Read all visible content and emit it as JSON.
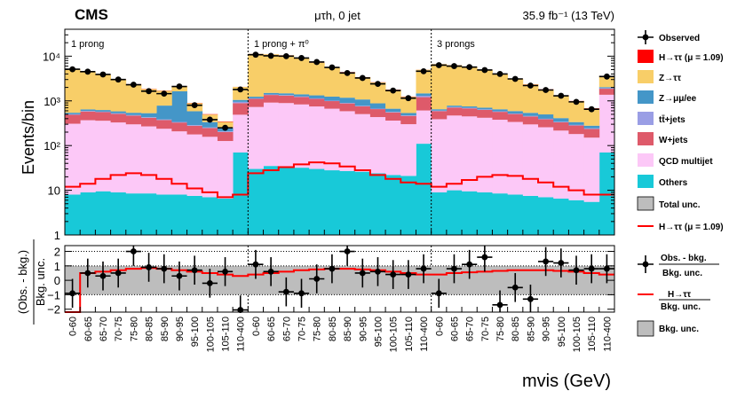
{
  "header": {
    "experiment": "CMS",
    "channel": "μτh, 0 jet",
    "lumi": "35.9 fb⁻¹ (13 TeV)"
  },
  "chart_data": {
    "type": "bar",
    "subtype": "stacked-histogram-with-ratio",
    "top_panel": {
      "ylabel": "Events/bin",
      "yscale": "log",
      "ylim": [
        1,
        40000
      ],
      "yticks": [
        "1",
        "10",
        "10²",
        "10³",
        "10⁴"
      ]
    },
    "bottom_panel": {
      "ylabel": "(Obs. - bkg.) / Bkg. unc.",
      "ylim": [
        -2.2,
        2.4
      ],
      "yticks": [
        "−2",
        "−1",
        "0",
        "1",
        "2"
      ]
    },
    "xlabel": "mvis (GeV)",
    "regions": [
      "1 prong",
      "1 prong + π⁰",
      "3 prongs"
    ],
    "bin_labels": [
      "0-60",
      "60-65",
      "65-70",
      "70-75",
      "75-80",
      "80-85",
      "85-90",
      "90-95",
      "95-100",
      "100-105",
      "105-110",
      "110-400"
    ],
    "series": [
      {
        "name": "Others",
        "color": "#18c9d8",
        "values": [
          8,
          9,
          9.5,
          9,
          8.5,
          8.5,
          8,
          8,
          7.5,
          7,
          6.5,
          70,
          30,
          35,
          33,
          32,
          30,
          28,
          27,
          26,
          24,
          22,
          21,
          110,
          9,
          10,
          9.5,
          9,
          8.5,
          8,
          7.5,
          7,
          6.5,
          6,
          5.5,
          70
        ]
      },
      {
        "name": "QCD multijet",
        "color": "#fcc8f7",
        "values": [
          300,
          360,
          350,
          320,
          290,
          260,
          230,
          200,
          170,
          150,
          120,
          420,
          700,
          880,
          860,
          800,
          720,
          640,
          560,
          480,
          410,
          340,
          280,
          500,
          380,
          460,
          440,
          410,
          370,
          330,
          290,
          250,
          210,
          175,
          145,
          1300
        ]
      },
      {
        "name": "W+jets",
        "color": "#de5a6a",
        "values": [
          180,
          210,
          200,
          185,
          170,
          150,
          135,
          120,
          100,
          90,
          75,
          400,
          380,
          440,
          420,
          390,
          360,
          320,
          290,
          250,
          220,
          190,
          160,
          600,
          200,
          240,
          230,
          210,
          190,
          170,
          150,
          130,
          115,
          100,
          85,
          500
        ]
      },
      {
        "name": "tt̄+jets",
        "color": "#9a9ee5",
        "values": [
          15,
          16,
          15,
          14,
          13,
          12,
          11,
          10,
          9,
          8,
          7,
          60,
          30,
          34,
          32,
          30,
          28,
          25,
          22,
          19,
          17,
          15,
          13,
          90,
          16,
          18,
          17,
          16,
          15,
          13,
          12,
          11,
          10,
          9,
          8,
          60
        ]
      },
      {
        "name": "Z→μμ/ee",
        "color": "#4496c8",
        "values": [
          40,
          50,
          50,
          55,
          60,
          100,
          400,
          1300,
          300,
          80,
          40,
          100,
          100,
          120,
          130,
          150,
          190,
          230,
          280,
          300,
          210,
          100,
          60,
          170,
          45,
          55,
          55,
          60,
          65,
          70,
          80,
          100,
          70,
          45,
          35,
          100
        ]
      },
      {
        "name": "Z→ττ",
        "color": "#f8ce68",
        "values": [
          4500,
          3800,
          3200,
          2400,
          1800,
          1300,
          900,
          500,
          300,
          160,
          90,
          1000,
          10000,
          9500,
          9000,
          7500,
          5800,
          4300,
          3200,
          2300,
          1700,
          1100,
          700,
          3500,
          6000,
          5500,
          5000,
          4200,
          3300,
          2500,
          1800,
          1300,
          900,
          650,
          400,
          1600
        ]
      },
      {
        "name": "H→ττ (μ = 1.09)",
        "color": "#ff0000",
        "values": [
          12,
          14,
          18,
          22,
          24,
          22,
          18,
          14,
          11,
          9,
          7,
          8,
          24,
          28,
          33,
          38,
          42,
          40,
          34,
          28,
          22,
          18,
          15,
          14,
          12,
          14,
          17,
          20,
          22,
          21,
          18,
          15,
          12,
          10,
          8,
          8
        ]
      }
    ],
    "observed": [
      5100,
      4500,
      3900,
      3000,
      2300,
      1650,
      1450,
      2100,
      800,
      380,
      250,
      1800,
      10800,
      10200,
      10000,
      9100,
      7400,
      5600,
      4200,
      3250,
      2400,
      1700,
      1150,
      4600,
      6300,
      6000,
      5700,
      4900,
      4000,
      3100,
      2200,
      1750,
      1300,
      950,
      650,
      3500
    ],
    "ratio": [
      -0.9,
      0.5,
      0.3,
      0.5,
      2.0,
      0.9,
      0.8,
      0.3,
      0.7,
      -0.2,
      0.6,
      -2.05,
      1.1,
      0.6,
      -0.8,
      -0.9,
      0.1,
      0.8,
      2.0,
      0.5,
      0.6,
      0.4,
      0.4,
      0.8,
      -0.9,
      0.8,
      1.1,
      1.6,
      -1.7,
      -0.5,
      -1.3,
      1.3,
      1.2,
      0.7,
      0.8,
      0.8
    ],
    "ratio_signal": [
      -2.2,
      0.5,
      0.6,
      0.7,
      0.8,
      0.85,
      0.8,
      0.7,
      0.6,
      0.5,
      0.4,
      0.3,
      0.4,
      0.5,
      0.6,
      0.7,
      0.75,
      0.8,
      0.8,
      0.75,
      0.7,
      0.6,
      0.5,
      0.4,
      0.4,
      0.5,
      0.55,
      0.6,
      0.65,
      0.7,
      0.7,
      0.7,
      0.65,
      0.6,
      0.5,
      0.4
    ],
    "legend_top": [
      "Observed",
      "H→ττ (μ = 1.09)",
      "Z→ττ",
      "Z→μμ/ee",
      "tt̄+jets",
      "W+jets",
      "QCD multijet",
      "Others",
      "Total unc.",
      "H→ττ (μ = 1.09)"
    ],
    "legend_bottom": [
      {
        "line1": "Obs. - bkg.",
        "line2": "Bkg. unc."
      },
      {
        "line1": "H→ττ",
        "line2": "Bkg. unc."
      },
      {
        "line1": "Bkg. unc.",
        "line2": ""
      }
    ],
    "colors": {
      "observed": "#000000",
      "signal_line": "#ff0000",
      "unc_band": "#bdbdbd"
    }
  }
}
